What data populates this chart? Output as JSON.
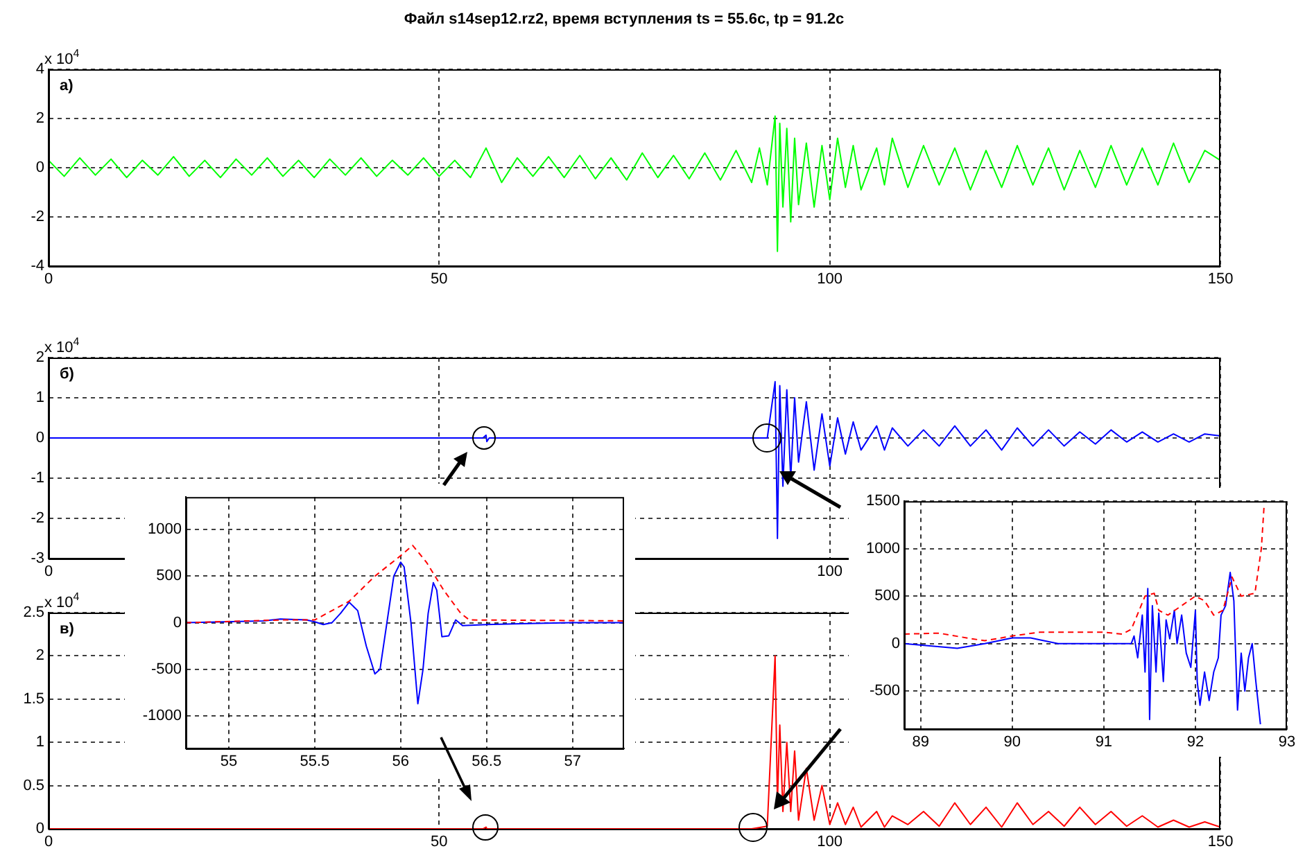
{
  "chart_data": [
    {
      "type": "line",
      "title": "Файл s14sep12.rz2, время вступления ts = 55.6с,  tp = 91.2с",
      "annotations": [
        "x 10$^{4}$",
        "а)"
      ],
      "xlim": [
        0,
        150
      ],
      "xticks": [
        0,
        50,
        100,
        150
      ],
      "ylim": [
        -4,
        4
      ],
      "yticks": [
        -4,
        -2,
        0,
        2,
        4
      ],
      "grid": true,
      "marker": "none",
      "series": [
        {
          "color": "#00ff00",
          "x": [
            0,
            2,
            4,
            6,
            8,
            10,
            12,
            14,
            16,
            18,
            20,
            22,
            24,
            26,
            28,
            30,
            32,
            34,
            36,
            38,
            40,
            42,
            44,
            46,
            48,
            50,
            52,
            54,
            56,
            58,
            60,
            62,
            64,
            66,
            68,
            70,
            72,
            74,
            76,
            78,
            80,
            82,
            84,
            86,
            88,
            90,
            91,
            92,
            93,
            93.3,
            93.6,
            94,
            94.5,
            95,
            95.5,
            96,
            97,
            98,
            99,
            100,
            101,
            102,
            103,
            104,
            106,
            107,
            108,
            110,
            112,
            114,
            116,
            118,
            120,
            122,
            124,
            126,
            128,
            130,
            132,
            134,
            136,
            138,
            140,
            142,
            144,
            146,
            148,
            150
          ],
          "values": [
            0.3,
            -0.35,
            0.4,
            -0.3,
            0.35,
            -0.4,
            0.3,
            -0.3,
            0.45,
            -0.35,
            0.3,
            -0.4,
            0.35,
            -0.3,
            0.4,
            -0.35,
            0.3,
            -0.4,
            0.35,
            -0.3,
            0.4,
            -0.35,
            0.3,
            -0.3,
            0.4,
            -0.35,
            0.3,
            -0.4,
            0.8,
            -0.6,
            0.4,
            -0.35,
            0.45,
            -0.4,
            0.5,
            -0.45,
            0.4,
            -0.5,
            0.6,
            -0.4,
            0.5,
            -0.45,
            0.6,
            -0.5,
            0.7,
            -0.6,
            0.8,
            -0.7,
            2.1,
            -3.4,
            1.8,
            -1.6,
            1.6,
            -2.2,
            1.2,
            -1.5,
            1.0,
            -1.6,
            0.9,
            -1.3,
            1.2,
            -0.8,
            0.9,
            -0.9,
            0.8,
            -0.7,
            1.2,
            -0.8,
            0.9,
            -0.7,
            0.8,
            -0.9,
            0.7,
            -0.8,
            0.9,
            -0.7,
            0.8,
            -0.9,
            0.7,
            -0.8,
            0.9,
            -0.7,
            0.8,
            -0.7,
            1.0,
            -0.6,
            0.7,
            0.3
          ]
        }
      ]
    },
    {
      "type": "line",
      "annotations": [
        "x 10$^{4}$",
        "б)"
      ],
      "xlim": [
        0,
        150
      ],
      "xticks": [
        0,
        {
          "value": 50,
          "label": null
        },
        100,
        {
          "value": 150,
          "label": null
        }
      ],
      "ylim": [
        -3,
        2
      ],
      "yticks": [
        -3,
        -2,
        -1,
        0,
        1,
        2
      ],
      "grid": true,
      "marker": "none",
      "series": [
        {
          "color": "#0000ff",
          "x": [
            0,
            10,
            20,
            30,
            40,
            50,
            55.6,
            56,
            56.1,
            56.4,
            60,
            70,
            80,
            90,
            92,
            93,
            93.3,
            93.6,
            94,
            94.5,
            95,
            95.5,
            96,
            97,
            98,
            99,
            100,
            101,
            102,
            103,
            104,
            106,
            107,
            108,
            110,
            112,
            114,
            116,
            118,
            120,
            122,
            124,
            126,
            128,
            130,
            132,
            134,
            136,
            138,
            140,
            142,
            144,
            146,
            148,
            150
          ],
          "values": [
            0,
            0,
            0,
            0,
            0,
            0,
            0,
            0.07,
            -0.09,
            0,
            0,
            0,
            0,
            0,
            0,
            1.4,
            -2.5,
            1.3,
            -1.2,
            1.2,
            -1.0,
            1.0,
            -0.6,
            0.9,
            -0.8,
            0.6,
            -0.7,
            0.5,
            -0.4,
            0.4,
            -0.3,
            0.3,
            -0.3,
            0.25,
            -0.2,
            0.2,
            -0.2,
            0.3,
            -0.2,
            0.2,
            -0.3,
            0.25,
            -0.2,
            0.2,
            -0.2,
            0.15,
            -0.15,
            0.2,
            -0.1,
            0.15,
            -0.1,
            0.1,
            -0.1,
            0.1,
            0.05
          ]
        }
      ]
    },
    {
      "type": "line",
      "annotations": [
        "x 10$^{4}$",
        "в)"
      ],
      "xlim": [
        0,
        150
      ],
      "xticks": [
        0,
        50,
        100,
        150
      ],
      "ylim": [
        0,
        2.5
      ],
      "yticks": [
        0,
        0.5,
        1,
        1.5,
        2,
        2.5
      ],
      "grid": true,
      "marker": "none",
      "series": [
        {
          "color": "#ff0000",
          "x": [
            0,
            10,
            20,
            30,
            40,
            50,
            55.6,
            56,
            56.1,
            56.4,
            60,
            70,
            80,
            90,
            92,
            93,
            93.3,
            93.6,
            94,
            94.5,
            95,
            95.5,
            96,
            97,
            98,
            99,
            100,
            101,
            102,
            103,
            104,
            106,
            107,
            108,
            110,
            112,
            114,
            116,
            118,
            120,
            122,
            124,
            126,
            128,
            130,
            132,
            134,
            136,
            138,
            140,
            142,
            144,
            146,
            148,
            150
          ],
          "values": [
            0,
            0,
            0,
            0,
            0,
            0,
            0,
            0.02,
            0,
            0,
            0,
            0,
            0,
            0,
            0.03,
            2.0,
            0.3,
            1.2,
            0.2,
            1.0,
            0.2,
            0.9,
            0.1,
            0.7,
            0.1,
            0.5,
            0.05,
            0.3,
            0.05,
            0.25,
            0.02,
            0.2,
            0.02,
            0.15,
            0.05,
            0.2,
            0.03,
            0.3,
            0.05,
            0.25,
            0.02,
            0.3,
            0.05,
            0.2,
            0.03,
            0.25,
            0.05,
            0.2,
            0.03,
            0.15,
            0.02,
            0.1,
            0.02,
            0.08,
            0.02
          ]
        }
      ]
    },
    {
      "type": "line",
      "xlim": [
        54.75,
        57.3
      ],
      "xticks": [
        55,
        55.5,
        56,
        56.5,
        57
      ],
      "ylim": [
        -1350,
        1350
      ],
      "yticks": [
        -1000,
        -500,
        0,
        500,
        1000
      ],
      "grid": true,
      "marker": "none",
      "series": [
        {
          "color": "#ff0000",
          "line_style": "dashed",
          "x": [
            54.75,
            55.3,
            55.5,
            55.7,
            55.85,
            56,
            56.07,
            56.15,
            56.25,
            56.35,
            56.4,
            57.3
          ],
          "values": [
            0,
            30,
            30,
            230,
            500,
            720,
            830,
            650,
            350,
            100,
            30,
            20
          ]
        },
        {
          "color": "#0000ff",
          "line_style": "solid",
          "x": [
            54.75,
            55.2,
            55.3,
            55.45,
            55.5,
            55.55,
            55.6,
            55.65,
            55.7,
            55.75,
            55.8,
            55.85,
            55.88,
            55.92,
            55.96,
            56,
            56.02,
            56.06,
            56.1,
            56.13,
            56.16,
            56.19,
            56.21,
            56.24,
            56.28,
            56.32,
            56.36,
            56.5,
            56.7,
            57,
            57.3
          ],
          "values": [
            0,
            20,
            40,
            30,
            10,
            -20,
            0,
            100,
            220,
            130,
            -250,
            -550,
            -500,
            0,
            500,
            650,
            600,
            0,
            -870,
            -500,
            100,
            430,
            350,
            -150,
            -140,
            30,
            -30,
            -20,
            -10,
            0,
            0
          ]
        }
      ]
    },
    {
      "type": "line",
      "xlim": [
        88.82,
        93
      ],
      "xticks": [
        89,
        90,
        91,
        92,
        93
      ],
      "ylim": [
        -900,
        1500
      ],
      "yticks": [
        -500,
        0,
        500,
        1000,
        1500
      ],
      "grid": true,
      "marker": "none",
      "series": [
        {
          "color": "#ff0000",
          "line_style": "dashed",
          "x": [
            88.82,
            89.2,
            89.5,
            89.7,
            90,
            90.3,
            91,
            91.2,
            91.3,
            91.45,
            91.55,
            91.6,
            91.7,
            91.85,
            92,
            92.1,
            92.2,
            92.3,
            92.4,
            92.5,
            92.65,
            92.72,
            92.75
          ],
          "values": [
            100,
            110,
            60,
            30,
            80,
            120,
            120,
            100,
            150,
            500,
            530,
            350,
            300,
            400,
            500,
            450,
            300,
            350,
            700,
            500,
            530,
            1000,
            1450
          ]
        },
        {
          "color": "#0000ff",
          "line_style": "solid",
          "x": [
            88.82,
            89.4,
            89.7,
            90,
            90.2,
            90.5,
            91.3,
            91.33,
            91.37,
            91.42,
            91.45,
            91.48,
            91.5,
            91.53,
            91.57,
            91.6,
            91.65,
            91.68,
            91.72,
            91.77,
            91.8,
            91.85,
            91.9,
            91.95,
            92,
            92.02,
            92.05,
            92.1,
            92.15,
            92.2,
            92.25,
            92.28,
            92.33,
            92.38,
            92.42,
            92.46,
            92.5,
            92.54,
            92.58,
            92.62,
            92.66,
            92.71
          ],
          "values": [
            0,
            -50,
            0,
            60,
            60,
            0,
            0,
            80,
            -150,
            300,
            -300,
            580,
            -800,
            400,
            -300,
            320,
            -400,
            250,
            50,
            350,
            0,
            300,
            -100,
            -250,
            350,
            -400,
            -650,
            -300,
            -600,
            -300,
            -150,
            300,
            400,
            750,
            450,
            -700,
            -100,
            -500,
            -150,
            0,
            -400,
            -850
          ]
        }
      ]
    }
  ]
}
